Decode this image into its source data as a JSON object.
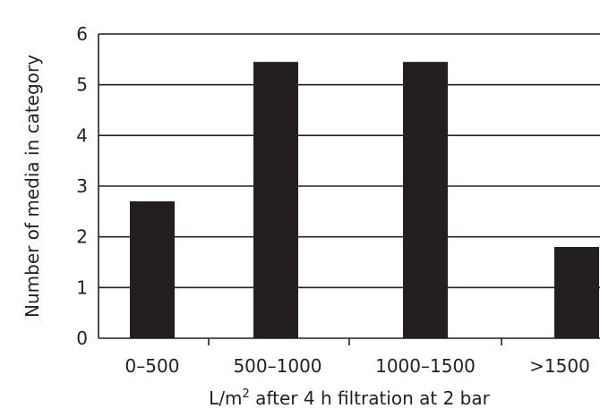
{
  "chart_data": {
    "type": "bar",
    "categories": [
      "0–500",
      "500–1000",
      "1000–1500",
      ">1500"
    ],
    "values": [
      2.7,
      5.45,
      5.45,
      1.8
    ],
    "title": "",
    "xlabel_parts": {
      "prefix": "L/m",
      "superscript": "2",
      "suffix": " after 4 h filtration at 2 bar"
    },
    "ylabel": "Number of media in category",
    "ylim": [
      0,
      6
    ],
    "yticks": [
      "0",
      "1",
      "2",
      "3",
      "4",
      "5",
      "6"
    ],
    "grid": "horizontal",
    "legend": "none",
    "colors": {
      "bar": "#231f20",
      "axis": "#231f20",
      "grid": "#231f20",
      "text": "#231f20"
    }
  }
}
